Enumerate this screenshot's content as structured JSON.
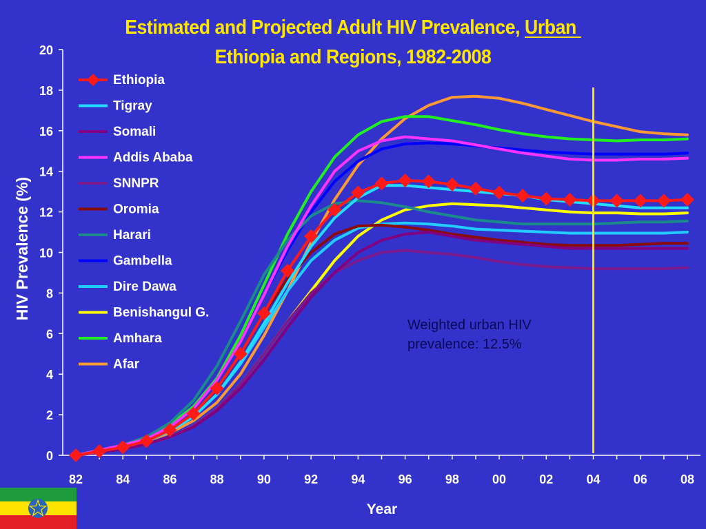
{
  "title": {
    "line1_prefix": "Estimated and Projected Adult HIV Prevalence, ",
    "line1_underlined": "Urban ",
    "line2": "Ethiopia and Regions, 1982-2008"
  },
  "annotation": {
    "line1": "Weighted urban HIV",
    "line2": "prevalence: 12.5%"
  },
  "flag": {
    "stripe_colors": [
      "#1E9B3C",
      "#FDE300",
      "#E31E24"
    ],
    "emblem_color": "#2A63B8",
    "emblem_icon": "star-pentagram-icon"
  },
  "colors": {
    "background": "#3333CC",
    "title": "#FFE600",
    "axis_text": "#FFFFFF",
    "reference_line": "#FFE600",
    "annotation_text": "#0A0A55"
  },
  "chart_data": {
    "type": "line",
    "xlabel": "Year",
    "ylabel": "HIV Prevalence (%)",
    "ylim": [
      0,
      20
    ],
    "y_ticks": [
      0,
      2,
      4,
      6,
      8,
      10,
      12,
      14,
      16,
      18,
      20
    ],
    "x_range": [
      1982,
      2008
    ],
    "x_ticks": [
      {
        "value": 1982,
        "label": "82"
      },
      {
        "value": 1984,
        "label": "84"
      },
      {
        "value": 1986,
        "label": "86"
      },
      {
        "value": 1988,
        "label": "88"
      },
      {
        "value": 1990,
        "label": "90"
      },
      {
        "value": 1992,
        "label": "92"
      },
      {
        "value": 1994,
        "label": "94"
      },
      {
        "value": 1996,
        "label": "96"
      },
      {
        "value": 1998,
        "label": "98"
      },
      {
        "value": 2000,
        "label": "00"
      },
      {
        "value": 2002,
        "label": "02"
      },
      {
        "value": 2004,
        "label": "04"
      },
      {
        "value": 2006,
        "label": "06"
      },
      {
        "value": 2008,
        "label": "08"
      }
    ],
    "reference_line_x": 2004,
    "legend_position": "top-left",
    "grid": false,
    "x": [
      1982,
      1983,
      1984,
      1985,
      1986,
      1987,
      1988,
      1989,
      1990,
      1991,
      1992,
      1993,
      1994,
      1995,
      1996,
      1997,
      1998,
      1999,
      2000,
      2001,
      2002,
      2003,
      2004,
      2005,
      2006,
      2007,
      2008
    ],
    "series": [
      {
        "name": "Ethiopia",
        "color": "#FF1A1A",
        "marker": "diamond",
        "values": [
          0.0,
          0.2,
          0.4,
          0.7,
          1.25,
          2.05,
          3.3,
          5.0,
          7.0,
          9.1,
          10.8,
          12.1,
          12.95,
          13.4,
          13.55,
          13.5,
          13.35,
          13.15,
          12.95,
          12.8,
          12.65,
          12.6,
          12.55,
          12.55,
          12.55,
          12.55,
          12.6
        ]
      },
      {
        "name": "Tigray",
        "color": "#22DDFF",
        "marker": "none",
        "values": [
          0.0,
          0.2,
          0.4,
          0.7,
          1.2,
          1.9,
          3.0,
          4.6,
          6.5,
          8.5,
          10.3,
          11.7,
          12.7,
          13.3,
          13.3,
          13.2,
          13.1,
          13.0,
          12.9,
          12.8,
          12.6,
          12.5,
          12.4,
          12.3,
          12.2,
          12.2,
          12.2
        ]
      },
      {
        "name": "Somali",
        "color": "#800080",
        "marker": "none",
        "values": [
          0.0,
          0.15,
          0.3,
          0.55,
          0.9,
          1.4,
          2.2,
          3.3,
          4.7,
          6.3,
          7.8,
          9.0,
          10.0,
          10.6,
          10.9,
          11.0,
          10.8,
          10.6,
          10.5,
          10.4,
          10.3,
          10.2,
          10.2,
          10.2,
          10.2,
          10.2,
          10.2
        ]
      },
      {
        "name": "Addis Ababa",
        "color": "#FF33FF",
        "marker": "none",
        "values": [
          0.0,
          0.25,
          0.5,
          0.8,
          1.4,
          2.3,
          3.7,
          5.6,
          7.9,
          10.3,
          12.3,
          14.0,
          15.0,
          15.5,
          15.7,
          15.6,
          15.5,
          15.3,
          15.1,
          14.9,
          14.75,
          14.6,
          14.55,
          14.55,
          14.6,
          14.6,
          14.65
        ]
      },
      {
        "name": "SNNPR",
        "color": "#7A1A8C",
        "marker": "none",
        "values": [
          0.0,
          0.15,
          0.3,
          0.55,
          0.9,
          1.45,
          2.3,
          3.5,
          5.0,
          6.6,
          8.0,
          9.0,
          9.6,
          10.0,
          10.1,
          10.0,
          9.9,
          9.75,
          9.55,
          9.4,
          9.3,
          9.25,
          9.2,
          9.2,
          9.2,
          9.2,
          9.25
        ]
      },
      {
        "name": "Oromia",
        "color": "#8B0A0A",
        "marker": "none",
        "values": [
          0.0,
          0.2,
          0.4,
          0.7,
          1.2,
          2.0,
          3.3,
          5.0,
          7.0,
          8.7,
          10.0,
          10.9,
          11.3,
          11.35,
          11.25,
          11.1,
          10.9,
          10.75,
          10.6,
          10.5,
          10.4,
          10.35,
          10.35,
          10.35,
          10.4,
          10.45,
          10.45
        ]
      },
      {
        "name": "Harari",
        "color": "#1A8A8A",
        "marker": "none",
        "values": [
          0.0,
          0.25,
          0.5,
          0.9,
          1.6,
          2.7,
          4.4,
          6.6,
          8.9,
          10.6,
          11.8,
          12.4,
          12.55,
          12.45,
          12.25,
          12.0,
          11.8,
          11.6,
          11.5,
          11.4,
          11.4,
          11.4,
          11.4,
          11.45,
          11.5,
          11.5,
          11.55
        ]
      },
      {
        "name": "Gambella",
        "color": "#0000FF",
        "marker": "none",
        "values": [
          0.0,
          0.25,
          0.5,
          0.8,
          1.4,
          2.3,
          3.7,
          5.6,
          7.9,
          10.1,
          12.0,
          13.5,
          14.5,
          15.1,
          15.35,
          15.4,
          15.35,
          15.25,
          15.15,
          15.05,
          14.95,
          14.9,
          14.85,
          14.85,
          14.85,
          14.85,
          14.9
        ]
      },
      {
        "name": "Dire Dawa",
        "color": "#22CCFF",
        "marker": "none",
        "values": [
          0.0,
          0.2,
          0.4,
          0.7,
          1.2,
          1.9,
          3.0,
          4.5,
          6.3,
          8.1,
          9.6,
          10.6,
          11.2,
          11.4,
          11.45,
          11.4,
          11.3,
          11.15,
          11.1,
          11.05,
          11.0,
          10.95,
          10.95,
          10.95,
          10.95,
          10.95,
          11.0
        ]
      },
      {
        "name": "Benishangul G.",
        "color": "#FFFF00",
        "marker": "none",
        "values": [
          0.0,
          0.15,
          0.3,
          0.55,
          0.9,
          1.45,
          2.3,
          3.5,
          5.0,
          6.6,
          8.1,
          9.6,
          10.8,
          11.6,
          12.1,
          12.3,
          12.4,
          12.35,
          12.3,
          12.2,
          12.1,
          12.0,
          11.95,
          11.95,
          11.9,
          11.9,
          11.95
        ]
      },
      {
        "name": "Amhara",
        "color": "#22EE22",
        "marker": "none",
        "values": [
          0.0,
          0.25,
          0.5,
          0.9,
          1.5,
          2.4,
          3.8,
          5.9,
          8.4,
          10.9,
          13.0,
          14.7,
          15.8,
          16.45,
          16.7,
          16.7,
          16.5,
          16.3,
          16.05,
          15.85,
          15.7,
          15.6,
          15.55,
          15.5,
          15.55,
          15.55,
          15.6
        ]
      },
      {
        "name": "Afar",
        "color": "#FF9933",
        "marker": "none",
        "values": [
          0.0,
          0.2,
          0.4,
          0.7,
          1.1,
          1.7,
          2.6,
          4.0,
          5.9,
          8.1,
          10.5,
          12.6,
          14.3,
          15.6,
          16.6,
          17.25,
          17.65,
          17.7,
          17.6,
          17.35,
          17.05,
          16.75,
          16.45,
          16.2,
          15.95,
          15.85,
          15.8
        ]
      }
    ]
  }
}
